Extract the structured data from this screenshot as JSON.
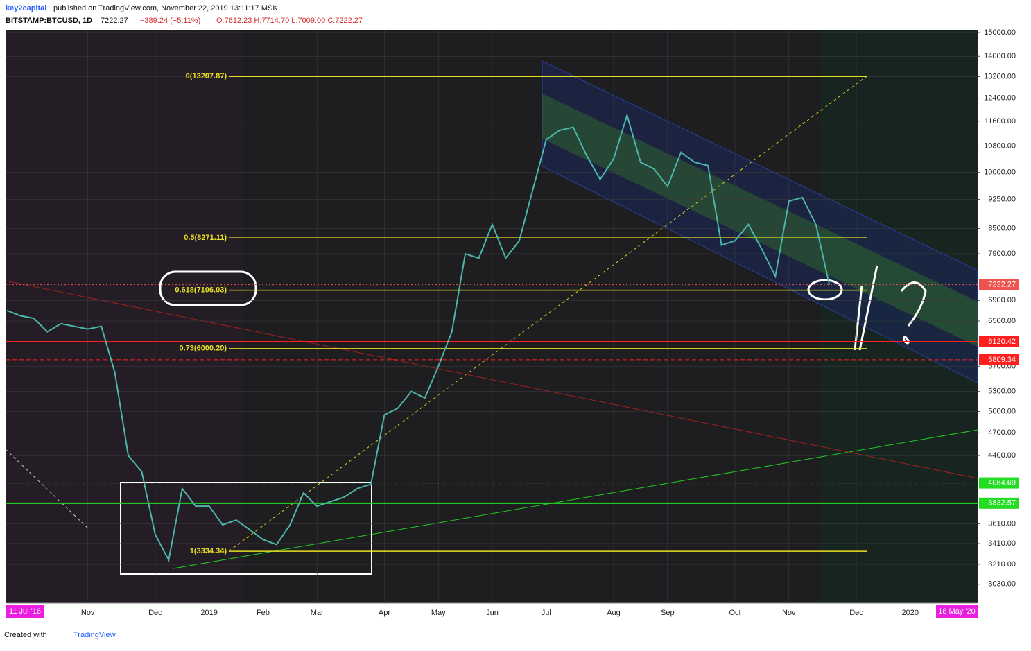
{
  "header": {
    "author": "key2capital",
    "published": "published on TradingView.com, November 22, 2019 13:11:17 MSK",
    "symbol": "BITSTAMP:BTCUSD, 1D",
    "last": "7222.27",
    "change": "−389.24 (−5.11%)",
    "ohlc": "O:7612.23 H:7714.70 L:7009.00 C:7222.27"
  },
  "footer": {
    "created": "Created with",
    "brand": "TradingView"
  },
  "range_badges": {
    "start": "11 Jul '16",
    "end": "18 May '20"
  },
  "chart_data": {
    "type": "line",
    "log_scale": true,
    "color": "#4db6ac",
    "categories": [
      null,
      null,
      null,
      null,
      null,
      null,
      "Nov",
      null,
      null,
      null,
      null,
      "Dec",
      null,
      null,
      null,
      "2019",
      null,
      null,
      null,
      "Feb",
      null,
      null,
      null,
      "Mar",
      null,
      null,
      null,
      null,
      "Apr",
      null,
      null,
      null,
      "May",
      null,
      null,
      null,
      "Jun",
      null,
      null,
      null,
      "Jul",
      null,
      null,
      null,
      null,
      "Aug",
      null,
      null,
      null,
      "Sep",
      null,
      null,
      null,
      null,
      "Oct",
      null,
      null,
      null,
      "Nov",
      null,
      null,
      null,
      null,
      "Dec",
      null,
      null,
      null,
      "2020",
      null,
      null,
      null,
      null
    ],
    "values": [
      6700,
      6600,
      6550,
      6300,
      6450,
      6400,
      6350,
      6400,
      5600,
      4400,
      4200,
      3500,
      3250,
      4000,
      3800,
      3800,
      3600,
      3650,
      3550,
      3450,
      3400,
      3600,
      3950,
      3800,
      3850,
      3900,
      4000,
      4050,
      4950,
      5050,
      5300,
      5200,
      5700,
      6300,
      7900,
      7800,
      8600,
      7800,
      8200,
      9500,
      11000,
      11300,
      11400,
      10500,
      9800,
      10400,
      11800,
      10300,
      10100,
      9600,
      10600,
      10300,
      10200,
      8100,
      8200,
      8600,
      8000,
      7400,
      9200,
      9300,
      8600,
      7222.27,
      null,
      null,
      null,
      null,
      null,
      null,
      null,
      null,
      null,
      null
    ],
    "ylim": [
      2880,
      15120
    ],
    "yticks": [
      {
        "value": 15000,
        "label": "15000.00"
      },
      {
        "value": 14000,
        "label": "14000.00"
      },
      {
        "value": 13200,
        "label": "13200.00"
      },
      {
        "value": 12400,
        "label": "12400.00"
      },
      {
        "value": 11600,
        "label": "11600.00"
      },
      {
        "value": 10800,
        "label": "10800.00"
      },
      {
        "value": 10000,
        "label": "10000.00"
      },
      {
        "value": 9250,
        "label": "9250.00"
      },
      {
        "value": 8500,
        "label": "8500.00"
      },
      {
        "value": 7900,
        "label": "7900.00"
      },
      {
        "value": 6900,
        "label": "6900.00"
      },
      {
        "value": 6500,
        "label": "6500.00"
      },
      {
        "value": 5700,
        "label": "5700.00"
      },
      {
        "value": 5300,
        "label": "5300.00"
      },
      {
        "value": 5000,
        "label": "5000.00"
      },
      {
        "value": 4700,
        "label": "4700.00"
      },
      {
        "value": 4400,
        "label": "4400.00"
      },
      {
        "value": 3610,
        "label": "3610.00"
      },
      {
        "value": 3410,
        "label": "3410.00"
      },
      {
        "value": 3210,
        "label": "3210.00"
      },
      {
        "value": 3030,
        "label": "3030.00"
      }
    ],
    "fib_levels": [
      {
        "value": 13207.87,
        "label": "0(13207.87)"
      },
      {
        "value": 8271.11,
        "label": "0.5(8271.11)"
      },
      {
        "value": 7106.03,
        "label": "0.618(7106.03)"
      },
      {
        "value": 6000.2,
        "label": "0.73(6000.20)"
      },
      {
        "value": 3334.34,
        "label": "1(3334.34)"
      }
    ],
    "price_lines": [
      {
        "value": 7222.27,
        "color": "#ef5350",
        "style": "dotted"
      },
      {
        "value": 6120.42,
        "color": "#ff1f1f",
        "style": "solid"
      },
      {
        "value": 5809.34,
        "color": "#ff1f1f",
        "style": "dashed"
      },
      {
        "value": 4064.69,
        "color": "#22dd22",
        "style": "dashed"
      },
      {
        "value": 3832.57,
        "color": "#22dd22",
        "style": "solid"
      }
    ]
  }
}
